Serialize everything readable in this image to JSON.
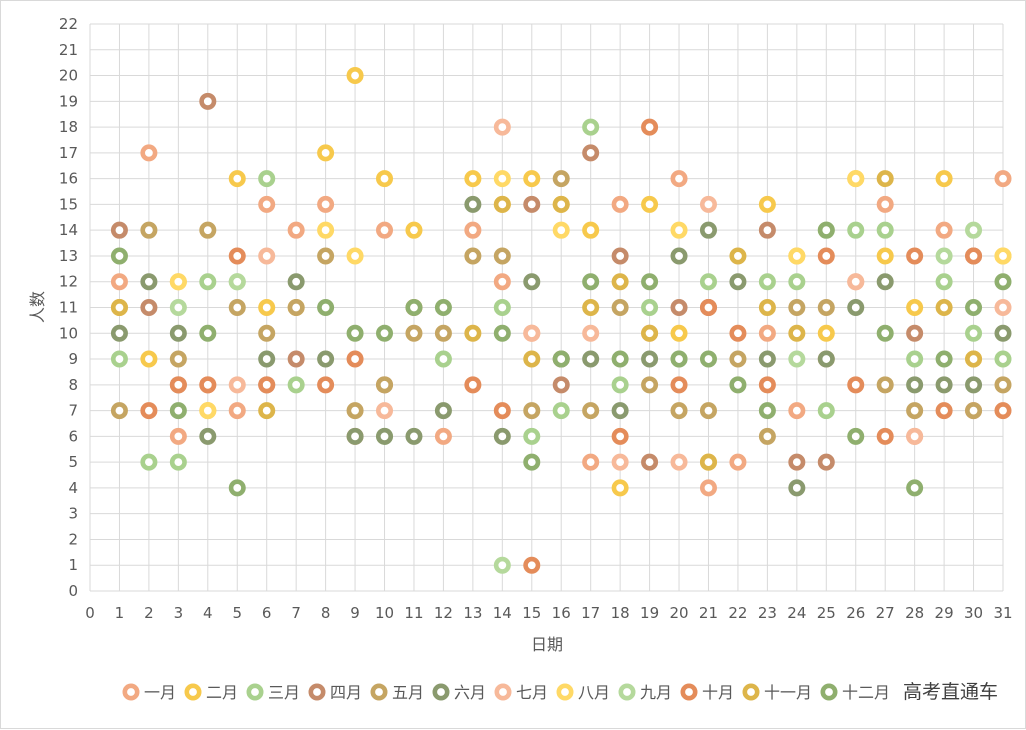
{
  "watermark": "高考直通车",
  "chart_data": {
    "type": "scatter",
    "title": "",
    "xlabel": "日期",
    "ylabel": "人数",
    "xlim": [
      0,
      31
    ],
    "ylim": [
      0,
      22
    ],
    "grid": true,
    "legend_position": "bottom",
    "x_ticks": [
      0,
      1,
      2,
      3,
      4,
      5,
      6,
      7,
      8,
      9,
      10,
      11,
      12,
      13,
      14,
      15,
      16,
      17,
      18,
      19,
      20,
      21,
      22,
      23,
      24,
      25,
      26,
      27,
      28,
      29,
      30,
      31
    ],
    "y_ticks": [
      0,
      1,
      2,
      3,
      4,
      5,
      6,
      7,
      8,
      9,
      10,
      11,
      12,
      13,
      14,
      15,
      16,
      17,
      18,
      19,
      20,
      21,
      22
    ],
    "series": [
      {
        "name": "一月",
        "color": "#F2A982",
        "values": [
          12,
          17,
          6,
          8,
          7,
          15,
          14,
          15,
          6,
          14,
          null,
          6,
          14,
          12,
          10,
          9,
          5,
          15,
          10,
          16,
          4,
          5,
          10,
          7,
          9,
          12,
          15,
          6,
          14,
          7,
          16
        ]
      },
      {
        "name": "二月",
        "color": "#F7C94C",
        "values": [
          11,
          9,
          12,
          7,
          16,
          11,
          11,
          17,
          20,
          16,
          14,
          null,
          16,
          15,
          16,
          15,
          14,
          4,
          15,
          10,
          5,
          null,
          15,
          13,
          10,
          16,
          13,
          11,
          16,
          9,
          13
        ]
      },
      {
        "name": "三月",
        "color": "#A9D18E",
        "values": [
          9,
          5,
          5,
          12,
          12,
          16,
          8,
          null,
          null,
          6,
          null,
          9,
          null,
          11,
          6,
          7,
          18,
          8,
          11,
          9,
          12,
          null,
          12,
          12,
          7,
          14,
          14,
          9,
          12,
          10,
          9
        ]
      },
      {
        "name": "四月",
        "color": "#C58B6A",
        "values": [
          14,
          11,
          8,
          19,
          null,
          8,
          9,
          null,
          null,
          8,
          null,
          null,
          null,
          null,
          15,
          8,
          17,
          13,
          5,
          11,
          11,
          null,
          14,
          5,
          5,
          null,
          null,
          10,
          null,
          13,
          null
        ]
      },
      {
        "name": "五月",
        "color": "#C5A562",
        "values": [
          7,
          14,
          9,
          14,
          11,
          10,
          11,
          13,
          7,
          8,
          10,
          10,
          13,
          13,
          7,
          16,
          7,
          11,
          8,
          7,
          7,
          9,
          6,
          11,
          11,
          null,
          8,
          7,
          null,
          7,
          8
        ]
      },
      {
        "name": "六月",
        "color": "#8A9A6E",
        "values": [
          10,
          12,
          10,
          6,
          null,
          9,
          12,
          9,
          6,
          6,
          6,
          7,
          15,
          6,
          12,
          9,
          9,
          7,
          9,
          13,
          14,
          12,
          9,
          4,
          9,
          11,
          12,
          8,
          8,
          8,
          10
        ]
      },
      {
        "name": "七月",
        "color": "#F7B99A",
        "values": [
          null,
          null,
          null,
          null,
          8,
          13,
          null,
          null,
          null,
          7,
          null,
          null,
          null,
          18,
          10,
          null,
          10,
          5,
          null,
          5,
          15,
          null,
          null,
          null,
          null,
          12,
          null,
          6,
          null,
          null,
          11
        ]
      },
      {
        "name": "八月",
        "color": "#FFD966",
        "values": [
          null,
          null,
          12,
          7,
          null,
          null,
          null,
          14,
          13,
          null,
          null,
          null,
          null,
          16,
          null,
          14,
          null,
          null,
          null,
          14,
          null,
          null,
          null,
          13,
          null,
          16,
          null,
          null,
          null,
          null,
          13
        ]
      },
      {
        "name": "九月",
        "color": "#B5D99C",
        "values": [
          null,
          null,
          11,
          null,
          12,
          null,
          null,
          null,
          null,
          null,
          null,
          null,
          null,
          1,
          null,
          null,
          null,
          null,
          null,
          null,
          null,
          null,
          null,
          9,
          14,
          null,
          null,
          null,
          13,
          14,
          null
        ]
      },
      {
        "name": "十月",
        "color": "#E48C5A",
        "values": [
          null,
          7,
          8,
          8,
          13,
          8,
          null,
          8,
          9,
          null,
          11,
          null,
          8,
          7,
          1,
          null,
          null,
          6,
          18,
          8,
          11,
          10,
          8,
          null,
          13,
          8,
          6,
          13,
          7,
          13,
          7
        ]
      },
      {
        "name": "十一月",
        "color": "#DDB54A",
        "values": [
          11,
          null,
          null,
          null,
          null,
          7,
          null,
          null,
          null,
          null,
          null,
          null,
          10,
          15,
          9,
          15,
          11,
          12,
          10,
          null,
          5,
          13,
          11,
          10,
          null,
          null,
          16,
          null,
          11,
          9,
          null
        ]
      },
      {
        "name": "十二月",
        "color": "#8FAF6E",
        "values": [
          13,
          null,
          7,
          10,
          4,
          null,
          null,
          11,
          10,
          10,
          11,
          11,
          null,
          10,
          5,
          9,
          12,
          9,
          12,
          9,
          9,
          8,
          7,
          null,
          14,
          6,
          10,
          4,
          9,
          11,
          12
        ]
      }
    ]
  }
}
